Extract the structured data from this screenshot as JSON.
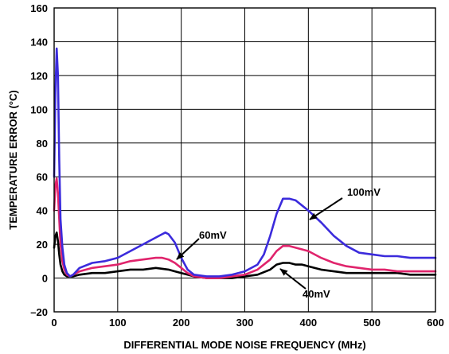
{
  "chart_data": {
    "type": "line",
    "xlabel": "DIFFERENTIAL MODE NOISE FREQUENCY (MHz)",
    "ylabel": "TEMPERATURE ERROR (°C)",
    "xlim": [
      0,
      600
    ],
    "ylim": [
      -20,
      160
    ],
    "xticks": [
      0,
      100,
      200,
      300,
      400,
      500,
      600
    ],
    "yticks": [
      -20,
      0,
      20,
      40,
      60,
      80,
      100,
      120,
      140,
      160
    ],
    "ytick_labels": [
      "–20",
      "0",
      "20",
      "40",
      "60",
      "80",
      "100",
      "120",
      "140",
      "160"
    ],
    "grid": true,
    "series": [
      {
        "name": "100mV",
        "color": "#3b2bdc",
        "x": [
          0,
          2,
          4,
          6,
          8,
          10,
          13,
          16,
          20,
          25,
          30,
          40,
          60,
          80,
          100,
          120,
          140,
          160,
          170,
          175,
          180,
          190,
          200,
          210,
          220,
          240,
          260,
          280,
          300,
          320,
          330,
          340,
          350,
          360,
          370,
          380,
          390,
          400,
          420,
          440,
          460,
          480,
          500,
          520,
          540,
          560,
          580,
          590,
          600
        ],
        "y": [
          60,
          110,
          136,
          120,
          70,
          35,
          18,
          8,
          3,
          1,
          2,
          6,
          9,
          10,
          12,
          16,
          20,
          24,
          26,
          27,
          26,
          21,
          12,
          5,
          2,
          1,
          1,
          2,
          4,
          8,
          14,
          25,
          38,
          47,
          47,
          46,
          43,
          40,
          33,
          25,
          19,
          15,
          14,
          13,
          13,
          12,
          12,
          12,
          12
        ]
      },
      {
        "name": "60mV",
        "color": "#e0246c",
        "x": [
          0,
          2,
          4,
          6,
          8,
          10,
          13,
          16,
          20,
          25,
          30,
          40,
          60,
          80,
          100,
          120,
          140,
          160,
          170,
          180,
          190,
          200,
          210,
          220,
          240,
          260,
          280,
          300,
          320,
          340,
          350,
          360,
          370,
          380,
          390,
          400,
          420,
          440,
          460,
          480,
          500,
          520,
          540,
          560,
          580,
          600
        ],
        "y": [
          40,
          55,
          59,
          50,
          35,
          20,
          10,
          5,
          2,
          1,
          2,
          4,
          6,
          7,
          8,
          10,
          11,
          12,
          12,
          11,
          9,
          6,
          3,
          1,
          0,
          0,
          1,
          2,
          5,
          11,
          16,
          19,
          19,
          18,
          17,
          16,
          12,
          9,
          7,
          6,
          5,
          5,
          4,
          4,
          4,
          4
        ]
      },
      {
        "name": "40mV",
        "color": "#000000",
        "x": [
          0,
          2,
          4,
          6,
          8,
          10,
          13,
          16,
          20,
          25,
          30,
          40,
          60,
          80,
          100,
          120,
          140,
          160,
          180,
          190,
          200,
          210,
          220,
          240,
          260,
          280,
          300,
          320,
          340,
          350,
          360,
          370,
          380,
          390,
          400,
          420,
          440,
          460,
          480,
          500,
          520,
          540,
          560,
          580,
          600
        ],
        "y": [
          18,
          25,
          27,
          22,
          14,
          8,
          4,
          2,
          1,
          1,
          1,
          2,
          3,
          3,
          4,
          5,
          5,
          6,
          5,
          4,
          3,
          2,
          1,
          0,
          0,
          0,
          1,
          2,
          5,
          8,
          9,
          9,
          8,
          8,
          7,
          5,
          4,
          3,
          3,
          3,
          3,
          3,
          2,
          2,
          2
        ]
      }
    ],
    "annotations": [
      {
        "text": "100mV",
        "series": 0
      },
      {
        "text": "60mV",
        "series": 1
      },
      {
        "text": "40mV",
        "series": 2
      }
    ]
  }
}
